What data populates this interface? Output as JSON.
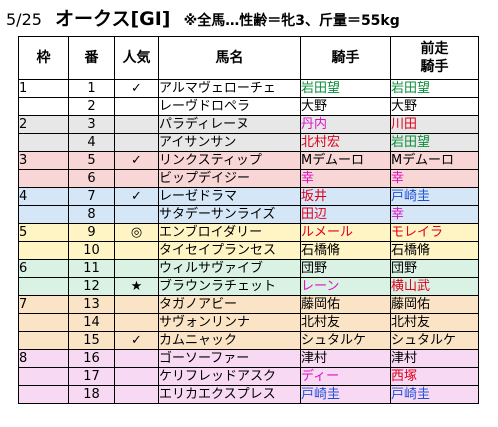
{
  "header": {
    "date": "5/25",
    "title": "オークス[GI]",
    "condition": "※全馬…性齢＝牝3、斤量＝55kg"
  },
  "columns": {
    "gate": "枠",
    "number": "番",
    "popularity": "人気",
    "horse": "馬名",
    "jockey": "騎手",
    "prev_jockey": "前走\n騎手"
  },
  "colors": {
    "gate_1": "#ffffff",
    "gate_2": "#e7e7e7",
    "gate_3": "#f9d6d6",
    "gate_4": "#d5e6f6",
    "gate_5": "#fff4c4",
    "gate_6": "#d9f2e3",
    "gate_7": "#fbe4c5",
    "gate_8": "#f7d9f3",
    "red": "#e0001b",
    "blue": "#1f4fd6",
    "magenta": "#e010c8",
    "green": "#0a8f3a",
    "black": "#000000"
  },
  "rows": [
    {
      "gate": "1",
      "number": "1",
      "pop": "✓",
      "horse": "アルマヴェローチェ",
      "jockey": "岩田望",
      "jockey_color": "green",
      "prev": "岩田望",
      "prev_color": "green"
    },
    {
      "gate": "",
      "number": "2",
      "pop": "",
      "horse": "レーヴドロペラ",
      "jockey": "大野",
      "jockey_color": "black",
      "prev": "大野",
      "prev_color": "black"
    },
    {
      "gate": "2",
      "number": "3",
      "pop": "",
      "horse": "パラディレーヌ",
      "jockey": "丹内",
      "jockey_color": "magenta",
      "prev": "川田",
      "prev_color": "red"
    },
    {
      "gate": "",
      "number": "4",
      "pop": "",
      "horse": "アイサンサン",
      "jockey": "北村宏",
      "jockey_color": "red",
      "prev": "岩田望",
      "prev_color": "green"
    },
    {
      "gate": "3",
      "number": "5",
      "pop": "✓",
      "horse": "リンクスティップ",
      "jockey": "Mデムーロ",
      "jockey_color": "black",
      "prev": "Mデムーロ",
      "prev_color": "black"
    },
    {
      "gate": "",
      "number": "6",
      "pop": "",
      "horse": "ビップデイジー",
      "jockey": "幸",
      "jockey_color": "magenta",
      "prev": "幸",
      "prev_color": "magenta"
    },
    {
      "gate": "4",
      "number": "7",
      "pop": "✓",
      "horse": "レーゼドラマ",
      "jockey": "坂井",
      "jockey_color": "red",
      "prev": "戸崎圭",
      "prev_color": "blue"
    },
    {
      "gate": "",
      "number": "8",
      "pop": "",
      "horse": "サタデーサンライズ",
      "jockey": "田辺",
      "jockey_color": "red",
      "prev": "幸",
      "prev_color": "magenta"
    },
    {
      "gate": "5",
      "number": "9",
      "pop": "◎",
      "horse": "エンブロイダリー",
      "jockey": "ルメール",
      "jockey_color": "red",
      "prev": "モレイラ",
      "prev_color": "red"
    },
    {
      "gate": "",
      "number": "10",
      "pop": "",
      "horse": "タイセイプランセス",
      "jockey": "石橋脩",
      "jockey_color": "black",
      "prev": "石橋脩",
      "prev_color": "black"
    },
    {
      "gate": "6",
      "number": "11",
      "pop": "",
      "horse": "ウィルサヴァイブ",
      "jockey": "団野",
      "jockey_color": "black",
      "prev": "団野",
      "prev_color": "black"
    },
    {
      "gate": "",
      "number": "12",
      "pop": "★",
      "horse": "ブラウンラチェット",
      "jockey": "レーン",
      "jockey_color": "magenta",
      "prev": "横山武",
      "prev_color": "red"
    },
    {
      "gate": "7",
      "number": "13",
      "pop": "",
      "horse": "タガノアビー",
      "jockey": "藤岡佑",
      "jockey_color": "black",
      "prev": "藤岡佑",
      "prev_color": "black"
    },
    {
      "gate": "",
      "number": "14",
      "pop": "",
      "horse": "サヴォンリンナ",
      "jockey": "北村友",
      "jockey_color": "black",
      "prev": "北村友",
      "prev_color": "black"
    },
    {
      "gate": "",
      "number": "15",
      "pop": "✓",
      "horse": "カムニャック",
      "jockey": "シュタルケ",
      "jockey_color": "black",
      "prev": "シュタルケ",
      "prev_color": "black"
    },
    {
      "gate": "8",
      "number": "16",
      "pop": "",
      "horse": "ゴーソーファー",
      "jockey": "津村",
      "jockey_color": "black",
      "prev": "津村",
      "prev_color": "black"
    },
    {
      "gate": "",
      "number": "17",
      "pop": "",
      "horse": "ケリフレッドアスク",
      "jockey": "ディー",
      "jockey_color": "magenta",
      "prev": "西塚",
      "prev_color": "red"
    },
    {
      "gate": "",
      "number": "18",
      "pop": "",
      "horse": "エリカエクスプレス",
      "jockey": "戸崎圭",
      "jockey_color": "blue",
      "prev": "戸崎圭",
      "prev_color": "blue"
    }
  ]
}
